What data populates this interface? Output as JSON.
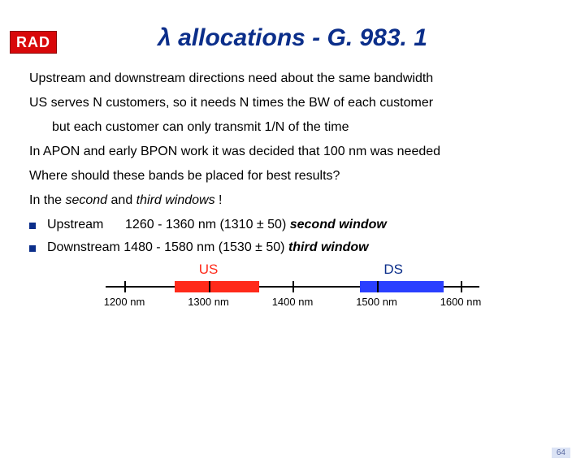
{
  "logo": "RAD",
  "title": "λ allocations - G. 983. 1",
  "lines": {
    "l1": "Upstream and downstream directions need about the same bandwidth",
    "l2": "US serves N customers, so it needs N times the BW of each customer",
    "l3": "but each customer can only transmit 1/N of the time",
    "l4": "In APON and early BPON work it was decided that 100 nm was needed",
    "l5": "Where should these bands be placed for best results?",
    "l6_pre": "In the ",
    "l6_em1": "second",
    "l6_mid": " and ",
    "l6_em2": "third windows",
    "l6_post": " !",
    "up_label": "Upstream",
    "up_range": "1260 - 1360 nm  (1310 ± 50)  ",
    "up_window": "second window",
    "down_label": "Downstream",
    "down_range": "1480 - 1580 nm (1530 ± 50)  ",
    "down_window": "third window"
  },
  "diagram": {
    "ticks": [
      {
        "pos_pct": 5,
        "label": "1200 nm"
      },
      {
        "pos_pct": 27.5,
        "label": "1300 nm"
      },
      {
        "pos_pct": 50,
        "label": "1400 nm"
      },
      {
        "pos_pct": 72.5,
        "label": "1500 nm"
      },
      {
        "pos_pct": 95,
        "label": "1600 nm"
      }
    ],
    "us": {
      "label": "US",
      "label_pos_pct": 27.5,
      "color": "#ff2a1a",
      "left_pct": 18.5,
      "width_pct": 22.5,
      "label_color": "#ff2a1a"
    },
    "ds": {
      "label": "DS",
      "label_pos_pct": 77,
      "color": "#2a3fff",
      "left_pct": 68,
      "width_pct": 22.5,
      "label_color": "#0b2e8a"
    }
  },
  "pagenum": "64",
  "colors": {
    "title": "#0b2e8a",
    "bullet": "#0b2e8a"
  }
}
